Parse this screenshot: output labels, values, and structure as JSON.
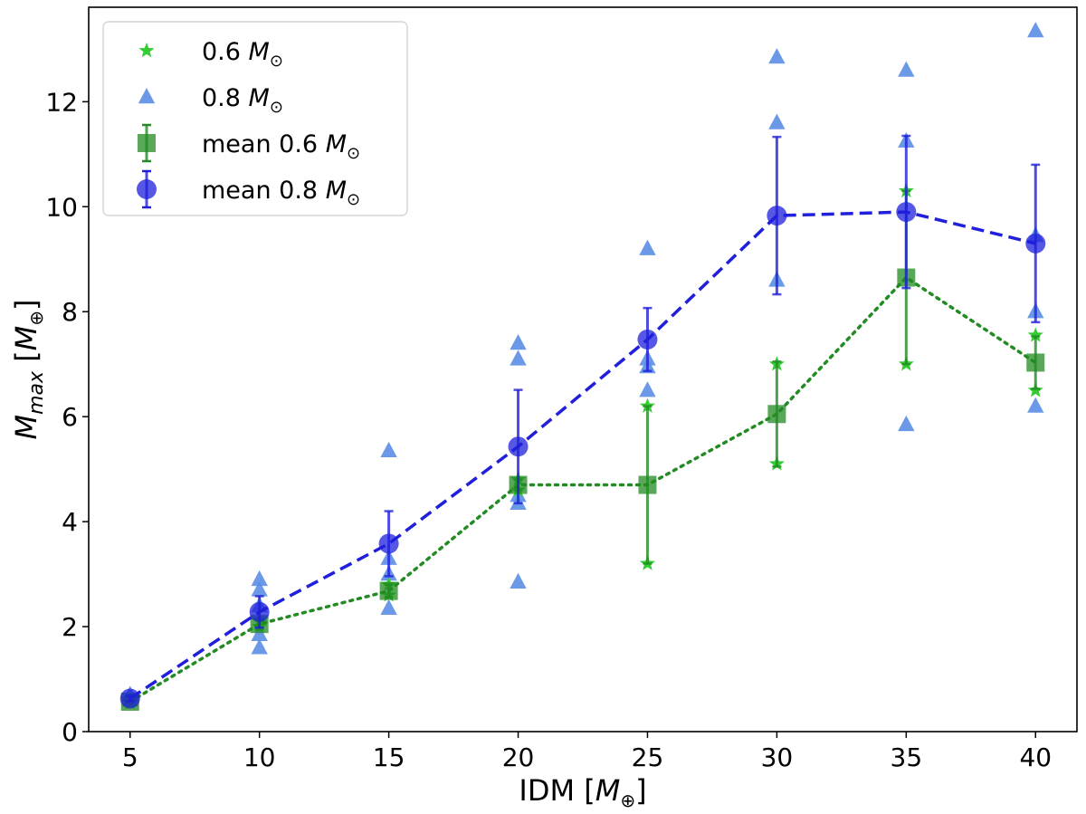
{
  "chart_data": {
    "type": "scatter",
    "title": "",
    "xlabel": "IDM [",
    "xlabel_sym": "M",
    "xlabel_sub": "⊕",
    "xlabel_close": "]",
    "ylabel": "M",
    "ylabel_sub": "max",
    "ylabel_unit_open": " [",
    "ylabel_unit_sym": "M",
    "ylabel_unit_sub": "⊕",
    "ylabel_unit_close": "]",
    "xlim": [
      3.4,
      41.6
    ],
    "ylim": [
      0,
      13.8
    ],
    "x_ticks": [
      5,
      10,
      15,
      20,
      25,
      30,
      35,
      40
    ],
    "y_ticks": [
      0,
      2,
      4,
      6,
      8,
      10,
      12
    ],
    "grid": false,
    "legend_placement": "top-left",
    "colors": {
      "green_star": "#33cc33",
      "blue_triangle": "#5b8ee6",
      "green_mean": "#228b22",
      "blue_mean": "#1f1fdc"
    },
    "series": [
      {
        "name": "0.6",
        "name_sym": "M",
        "name_sub": "⊙",
        "marker": "star",
        "points": [
          [
            5,
            0.55
          ],
          [
            5,
            0.6
          ],
          [
            10,
            2.0
          ],
          [
            10,
            2.1
          ],
          [
            15,
            2.6
          ],
          [
            15,
            2.8
          ],
          [
            20,
            4.6
          ],
          [
            20,
            4.8
          ],
          [
            25,
            3.2
          ],
          [
            25,
            6.2
          ],
          [
            30,
            5.1
          ],
          [
            30,
            7.0
          ],
          [
            35,
            7.0
          ],
          [
            35,
            10.3
          ],
          [
            40,
            6.5
          ],
          [
            40,
            7.55
          ]
        ]
      },
      {
        "name": "0.8",
        "name_sym": "M",
        "name_sub": "⊙",
        "marker": "triangle",
        "points": [
          [
            5,
            0.6
          ],
          [
            5,
            0.7
          ],
          [
            10,
            1.6
          ],
          [
            10,
            1.85
          ],
          [
            10,
            2.4
          ],
          [
            10,
            2.7
          ],
          [
            10,
            2.9
          ],
          [
            15,
            2.35
          ],
          [
            15,
            3.0
          ],
          [
            15,
            3.3
          ],
          [
            15,
            5.35
          ],
          [
            20,
            2.85
          ],
          [
            20,
            4.35
          ],
          [
            20,
            4.5
          ],
          [
            20,
            7.1
          ],
          [
            20,
            7.4
          ],
          [
            25,
            6.5
          ],
          [
            25,
            6.95
          ],
          [
            25,
            7.1
          ],
          [
            25,
            9.2
          ],
          [
            30,
            8.6
          ],
          [
            30,
            11.6
          ],
          [
            30,
            12.85
          ],
          [
            35,
            5.85
          ],
          [
            35,
            11.25
          ],
          [
            35,
            12.6
          ],
          [
            40,
            6.2
          ],
          [
            40,
            8.0
          ],
          [
            40,
            9.45
          ],
          [
            40,
            13.35
          ]
        ]
      },
      {
        "name": "mean 0.6",
        "name_sym": "M",
        "name_sub": "⊙",
        "marker": "square",
        "linestyle": "dotted",
        "x": [
          5,
          10,
          15,
          20,
          25,
          30,
          35,
          40
        ],
        "values": [
          0.57,
          2.05,
          2.68,
          4.7,
          4.7,
          6.05,
          8.65,
          7.03
        ],
        "err": [
          0.03,
          0.1,
          0.12,
          0.1,
          1.5,
          1.0,
          1.65,
          0.5
        ]
      },
      {
        "name": "mean 0.8",
        "name_sym": "M",
        "name_sub": "⊙",
        "marker": "circle",
        "linestyle": "dashed",
        "x": [
          5,
          10,
          15,
          20,
          25,
          30,
          35,
          40
        ],
        "values": [
          0.63,
          2.28,
          3.58,
          5.43,
          7.47,
          9.83,
          9.9,
          9.3
        ],
        "err": [
          0.05,
          0.3,
          0.62,
          1.08,
          0.6,
          1.5,
          1.45,
          1.5
        ]
      }
    ]
  }
}
